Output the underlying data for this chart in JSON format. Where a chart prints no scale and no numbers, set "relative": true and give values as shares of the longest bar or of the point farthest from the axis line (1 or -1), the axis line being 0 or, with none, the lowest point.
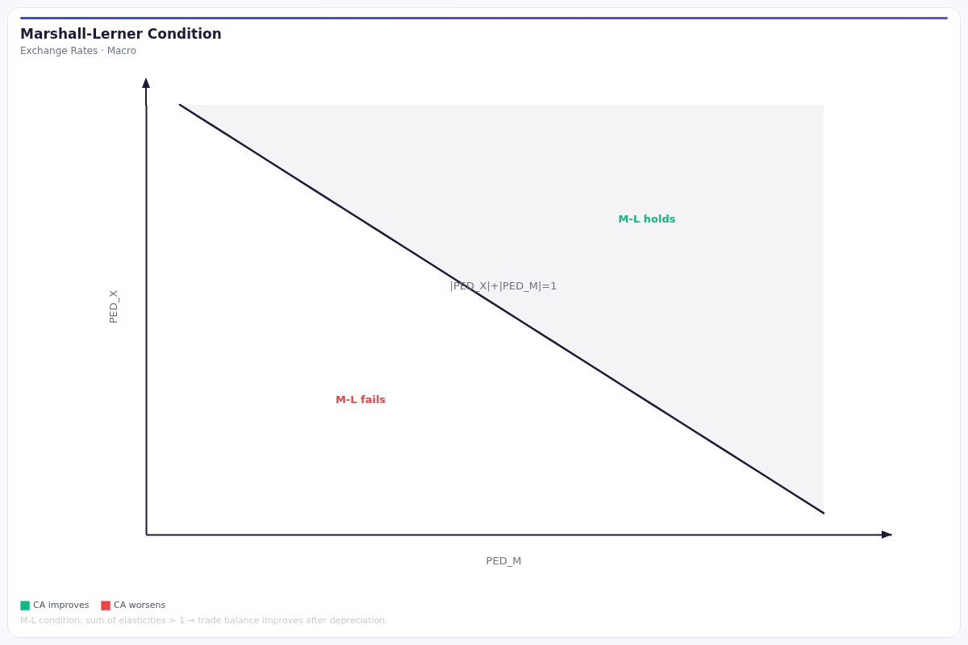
{
  "chart_data": {
    "type": "line",
    "title": "Marshall-Lerner Condition",
    "subtitle": "Exchange Rates · Macro",
    "xlabel": "PED_M",
    "ylabel": "PED_X",
    "relative": true,
    "categories": [
      null,
      null,
      null,
      null,
      null,
      null,
      null,
      null,
      null,
      null,
      null,
      null,
      null,
      null,
      null,
      null,
      null,
      null,
      null,
      null,
      null,
      null,
      null
    ],
    "series": [
      {
        "color": "#1e1b3a",
        "values": [
          null,
          1,
          0.95,
          0.9,
          0.85,
          0.8,
          0.75,
          0.7,
          0.65,
          0.6,
          0.55,
          0.5,
          0.45,
          0.4,
          0.35,
          0.3,
          0.25,
          0.2,
          0.15,
          0.1,
          0.05,
          null,
          null
        ],
        "lower": [
          null,
          1,
          0.95,
          0.9,
          0.85,
          0.8,
          0.75,
          0.7,
          0.65,
          0.6,
          0.55,
          0.5,
          0.45,
          0.4,
          0.35,
          0.3,
          0.25,
          0.2,
          0.15,
          0.1,
          0.05,
          null,
          null
        ],
        "upper": [
          null,
          1,
          1,
          1,
          1,
          1,
          1,
          1,
          1,
          1,
          1,
          1,
          1,
          1,
          1,
          1,
          1,
          1,
          1,
          1,
          1,
          null,
          null
        ]
      },
      {
        "name": "CA improves",
        "color": "#10b981",
        "values": [
          null,
          null,
          null,
          null,
          null,
          null,
          null,
          null,
          null,
          null,
          null,
          null,
          null,
          null,
          null,
          null,
          null,
          null,
          null,
          null,
          null,
          null,
          null
        ]
      },
      {
        "name": "CA worsens",
        "color": "#ef4444",
        "values": [
          null,
          null,
          null,
          null,
          null,
          null,
          null,
          null,
          null,
          null,
          null,
          null,
          null,
          null,
          null,
          null,
          null,
          null,
          null,
          null,
          null,
          null,
          null
        ]
      }
    ],
    "legend": "bottom left",
    "annotations": [
      "M-L holds",
      "M-L fails",
      "|PED_X|+|PED_M|=1",
      "M-L condition: sum of elasticities > 1 → trade balance improves after depreciation."
    ]
  }
}
